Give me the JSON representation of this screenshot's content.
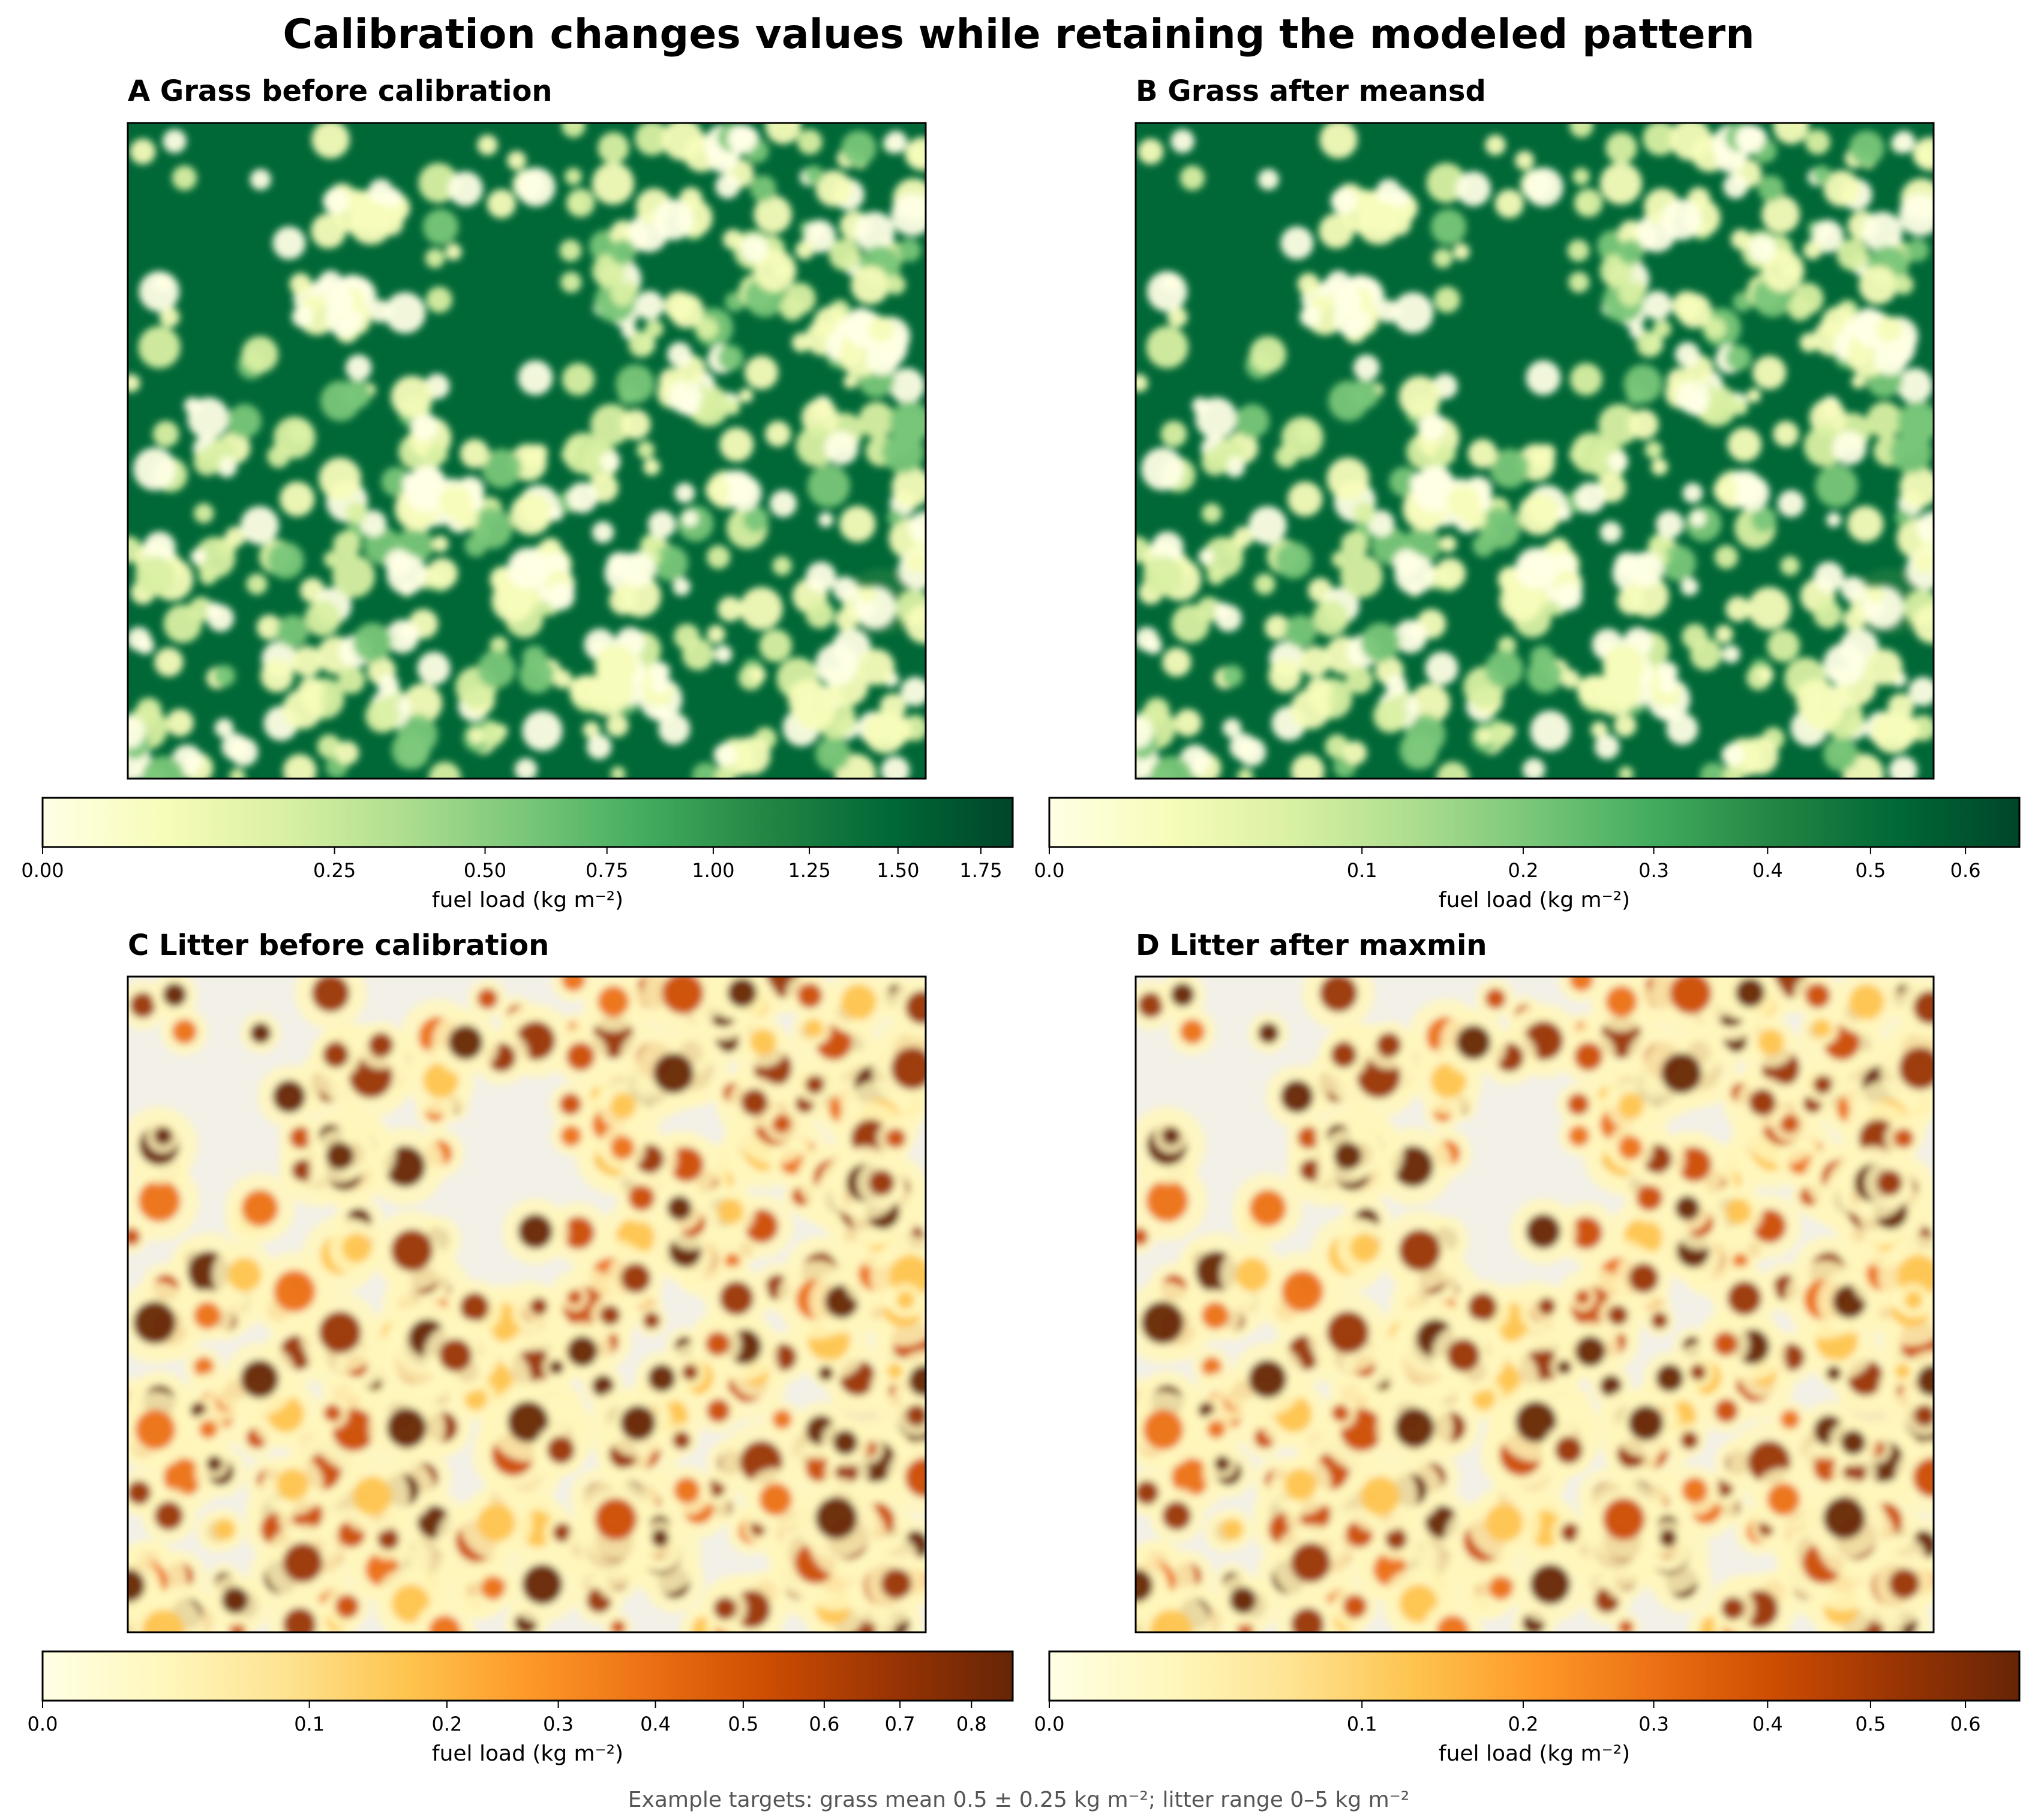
{
  "figure": {
    "suptitle": "Calibration changes values while retaining the modeled pattern",
    "footnote": "Example targets: grass mean 0.5 ± 0.25 kg m⁻²; litter range 0–5 kg m⁻²"
  },
  "colors": {
    "greens_cmap": [
      "#ffffe5",
      "#f7fcb9",
      "#d9f0a3",
      "#addd8e",
      "#78c679",
      "#41ab5d",
      "#238443",
      "#006837",
      "#004529"
    ],
    "orange_cmap": [
      "#ffffe5",
      "#fff7bc",
      "#fee391",
      "#fec44f",
      "#fe9929",
      "#ec7014",
      "#cc4c02",
      "#993404",
      "#662506"
    ],
    "litter_background": "#f3f0e8"
  },
  "chart_data": [
    {
      "type": "heatmap",
      "panel": "A",
      "title": "Grass before calibration",
      "colormap": "Greens",
      "colorbar": {
        "label": "fuel load (kg m⁻²)",
        "vmin": 0.0,
        "vmax": 1.85,
        "scale": "power",
        "ticks": [
          0.0,
          0.25,
          0.5,
          0.75,
          1.0,
          1.25,
          1.5,
          1.75
        ],
        "tick_labels": [
          "0.00",
          "0.25",
          "0.50",
          "0.75",
          "1.00",
          "1.25",
          "1.50",
          "1.75"
        ]
      }
    },
    {
      "type": "heatmap",
      "panel": "B",
      "title": "Grass after meansd",
      "colormap": "Greens",
      "colorbar": {
        "label": "fuel load (kg m⁻²)",
        "vmin": 0.0,
        "vmax": 0.66,
        "scale": "power",
        "ticks": [
          0.0,
          0.1,
          0.2,
          0.3,
          0.4,
          0.5,
          0.6
        ],
        "tick_labels": [
          "0.0",
          "0.1",
          "0.2",
          "0.3",
          "0.4",
          "0.5",
          "0.6"
        ]
      }
    },
    {
      "type": "heatmap",
      "panel": "C",
      "title": "Litter before calibration",
      "colormap": "YlOrBr",
      "colorbar": {
        "label": "fuel load (kg m⁻²)",
        "vmin": 0.0,
        "vmax": 0.86,
        "scale": "power",
        "ticks": [
          0.0,
          0.1,
          0.2,
          0.3,
          0.4,
          0.5,
          0.6,
          0.7,
          0.8
        ],
        "tick_labels": [
          "0.0",
          "0.1",
          "0.2",
          "0.3",
          "0.4",
          "0.5",
          "0.6",
          "0.7",
          "0.8"
        ]
      }
    },
    {
      "type": "heatmap",
      "panel": "D",
      "title": "Litter after maxmin",
      "colormap": "YlOrBr",
      "colorbar": {
        "label": "fuel load (kg m⁻²)",
        "vmin": 0.0,
        "vmax": 0.66,
        "scale": "power",
        "ticks": [
          0.0,
          0.1,
          0.2,
          0.3,
          0.4,
          0.5,
          0.6
        ],
        "tick_labels": [
          "0.0",
          "0.1",
          "0.2",
          "0.3",
          "0.4",
          "0.5",
          "0.6"
        ]
      }
    }
  ]
}
